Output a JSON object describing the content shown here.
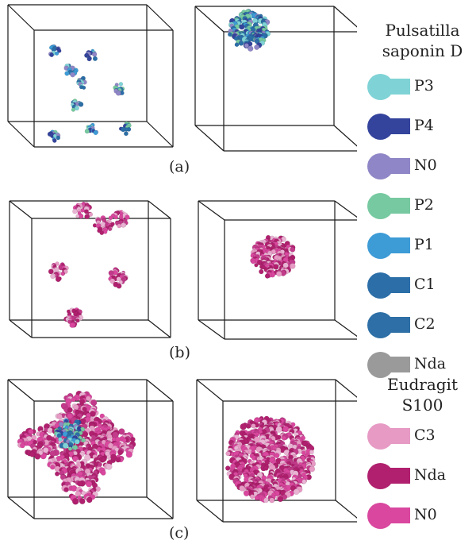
{
  "panels": [
    {
      "caption": "(a)",
      "left_state": "dispersed",
      "right_state": "aggregated",
      "left_material": "saponin",
      "right_material": "saponin"
    },
    {
      "caption": "(b)",
      "left_state": "dispersed",
      "right_state": "aggregated",
      "left_material": "eudragit",
      "right_material": "eudragit"
    },
    {
      "caption": "(c)",
      "left_state": "mixed",
      "right_state": "aggregated",
      "left_material": "mixed",
      "right_material": "eudragit"
    }
  ],
  "legend": {
    "groups": [
      {
        "title_lines": [
          "Pulsatilla",
          "saponin D"
        ],
        "items": [
          {
            "label": "P3",
            "color": "#7fd3d6"
          },
          {
            "label": "P4",
            "color": "#34449c"
          },
          {
            "label": "N0",
            "color": "#8e86c6"
          },
          {
            "label": "P2",
            "color": "#76c9a0"
          },
          {
            "label": "P1",
            "color": "#3d9bd6"
          },
          {
            "label": "C1",
            "color": "#2b6ea8"
          },
          {
            "label": "C2",
            "color": "#2d6fa6"
          },
          {
            "label": "Nda",
            "color": "#9a9a9a"
          }
        ]
      },
      {
        "title_lines": [
          "Eudragit",
          "S100"
        ],
        "items": [
          {
            "label": "C3",
            "color": "#e69ac4"
          },
          {
            "label": "Nda",
            "color": "#b0206e"
          },
          {
            "label": "N0",
            "color": "#d9479e"
          }
        ]
      }
    ]
  }
}
